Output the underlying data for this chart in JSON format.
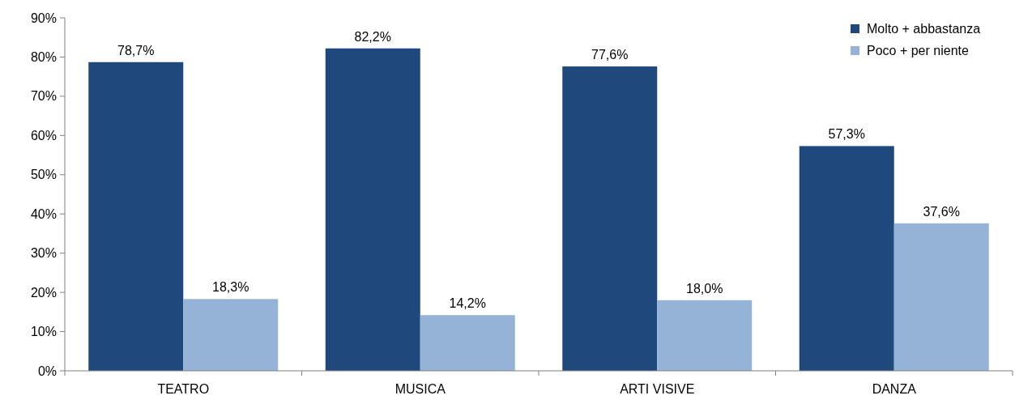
{
  "chart_data": {
    "type": "bar",
    "categories": [
      "TEATRO",
      "MUSICA",
      "ARTI VISIVE",
      "DANZA"
    ],
    "series": [
      {
        "name": "Molto + abbastanza",
        "color": "#1f497d",
        "values": [
          78.7,
          82.2,
          77.6,
          57.3
        ],
        "value_labels": [
          "78,7%",
          "82,2%",
          "77,6%",
          "57,3%"
        ]
      },
      {
        "name": "Poco + per niente",
        "color": "#95b3d7",
        "values": [
          18.3,
          14.2,
          18.0,
          37.6
        ],
        "value_labels": [
          "18,3%",
          "14,2%",
          "18,0%",
          "37,6%"
        ]
      }
    ],
    "ylim": [
      0,
      90
    ],
    "yticks": [
      {
        "value": 0,
        "label": "0%"
      },
      {
        "value": 10,
        "label": "10%"
      },
      {
        "value": 20,
        "label": "20%"
      },
      {
        "value": 30,
        "label": "30%"
      },
      {
        "value": 40,
        "label": "40%"
      },
      {
        "value": 50,
        "label": "50%"
      },
      {
        "value": 60,
        "label": "60%"
      },
      {
        "value": 70,
        "label": "70%"
      },
      {
        "value": 80,
        "label": "80%"
      },
      {
        "value": 90,
        "label": "90%"
      }
    ],
    "grid": false,
    "legend": "top right"
  }
}
